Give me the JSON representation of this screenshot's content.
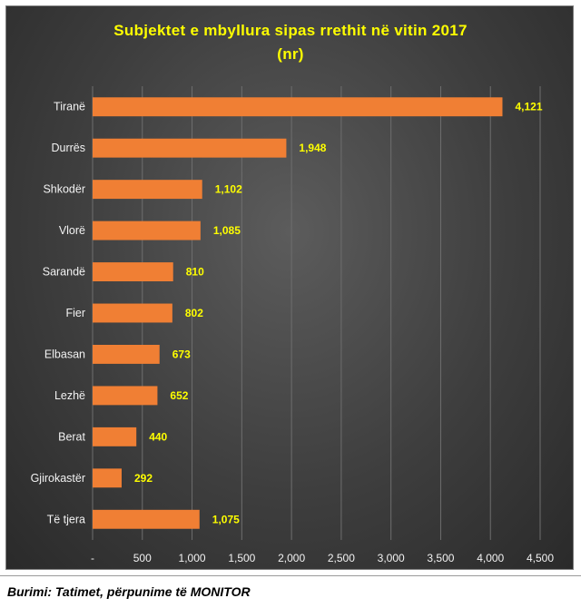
{
  "colors": {
    "bar": "#f07f34",
    "label": "#ffff00",
    "text": "#f2f2f2",
    "grid": "#6e6e6e"
  },
  "chart_data": {
    "type": "bar",
    "orientation": "horizontal",
    "title": "Subjektet e mbyllura sipas rrethit në vitin 2017",
    "subtitle": "(nr)",
    "xlabel": "",
    "ylabel": "",
    "categories": [
      "Tiranë",
      "Durrës",
      "Shkodër",
      "Vlorë",
      "Sarandë",
      "Fier",
      "Elbasan",
      "Lezhë",
      "Berat",
      "Gjirokastër",
      "Të tjera"
    ],
    "values": [
      4121,
      1948,
      1102,
      1085,
      810,
      802,
      673,
      652,
      440,
      292,
      1075
    ],
    "value_labels": [
      "4,121",
      "1,948",
      "1,102",
      "1,085",
      "810",
      "802",
      "673",
      "652",
      "440",
      "292",
      "1,075"
    ],
    "xlim": [
      0,
      4500
    ],
    "xticks": [
      0,
      500,
      1000,
      1500,
      2000,
      2500,
      3000,
      3500,
      4000,
      4500
    ],
    "xtick_labels": [
      "-",
      "500",
      "1,000",
      "1,500",
      "2,000",
      "2,500",
      "3,000",
      "3,500",
      "4,000",
      "4,500"
    ],
    "grid": true,
    "legend": "none"
  },
  "footer": {
    "source": "Burimi: Tatimet, përpunime të MONITOR"
  }
}
